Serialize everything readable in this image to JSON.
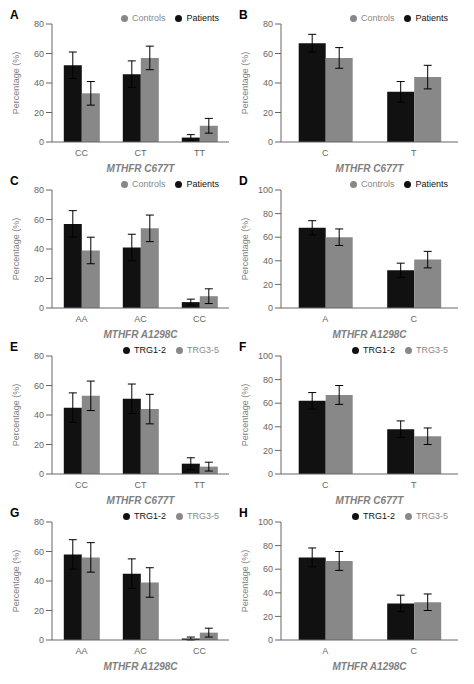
{
  "chart_data": [
    {
      "type": "bar",
      "title": "A",
      "categories": [
        "CC",
        "CT",
        "TT"
      ],
      "x_label": "MTHFR C677T",
      "y_label": "Percentage (%)",
      "series": [
        {
          "name": "Patients",
          "color": "#111111",
          "values": [
            52,
            46,
            3
          ],
          "errors": [
            9,
            9,
            2
          ]
        },
        {
          "name": "Controls",
          "color": "#888888",
          "values": [
            33,
            57,
            11
          ],
          "errors": [
            8,
            8,
            5
          ]
        }
      ],
      "ylim": [
        0,
        80
      ],
      "yticks": [
        0,
        20,
        40,
        60,
        80
      ],
      "grid": false,
      "legend": "upper right"
    },
    {
      "type": "bar",
      "title": "B",
      "categories": [
        "C",
        "T"
      ],
      "x_label": "MTHFR C677T",
      "y_label": "Percentage (%)",
      "series": [
        {
          "name": "Patients",
          "color": "#111111",
          "values": [
            67,
            34
          ],
          "errors": [
            6,
            7
          ]
        },
        {
          "name": "Controls",
          "color": "#888888",
          "values": [
            57,
            44
          ],
          "errors": [
            7,
            8
          ]
        }
      ],
      "ylim": [
        0,
        80
      ],
      "yticks": [
        0,
        20,
        40,
        60,
        80
      ],
      "grid": false,
      "legend": "upper right"
    },
    {
      "type": "bar",
      "title": "C",
      "categories": [
        "AA",
        "AC",
        "CC"
      ],
      "x_label": "MTHFR A1298C",
      "y_label": "Percentage (%)",
      "series": [
        {
          "name": "Patients",
          "color": "#111111",
          "values": [
            57,
            41,
            4
          ],
          "errors": [
            9,
            9,
            2
          ]
        },
        {
          "name": "Controls",
          "color": "#888888",
          "values": [
            39,
            54,
            8
          ],
          "errors": [
            9,
            9,
            5
          ]
        }
      ],
      "ylim": [
        0,
        80
      ],
      "yticks": [
        0,
        20,
        40,
        60,
        80
      ],
      "grid": false,
      "legend": "upper right"
    },
    {
      "type": "bar",
      "title": "D",
      "categories": [
        "A",
        "C"
      ],
      "x_label": "MTHFR A1298C",
      "y_label": "Percentage (%)",
      "series": [
        {
          "name": "Patients",
          "color": "#111111",
          "values": [
            68,
            32
          ],
          "errors": [
            6,
            6
          ]
        },
        {
          "name": "Controls",
          "color": "#888888",
          "values": [
            60,
            41
          ],
          "errors": [
            7,
            7
          ]
        }
      ],
      "ylim": [
        0,
        100
      ],
      "yticks": [
        0,
        20,
        40,
        60,
        80,
        100
      ],
      "grid": false,
      "legend": "upper right"
    },
    {
      "type": "bar",
      "title": "E",
      "categories": [
        "CC",
        "CT",
        "TT"
      ],
      "x_label": "MTHFR C677T",
      "y_label": "Percentage (%)",
      "series": [
        {
          "name": "TRG1-2",
          "color": "#111111",
          "values": [
            45,
            51,
            7
          ],
          "errors": [
            10,
            10,
            4
          ]
        },
        {
          "name": "TRG3-5",
          "color": "#888888",
          "values": [
            53,
            44,
            5
          ],
          "errors": [
            10,
            10,
            3
          ]
        }
      ],
      "ylim": [
        0,
        80
      ],
      "yticks": [
        0,
        20,
        40,
        60,
        80
      ],
      "grid": false,
      "legend": "upper right"
    },
    {
      "type": "bar",
      "title": "F",
      "categories": [
        "C",
        "T"
      ],
      "x_label": "MTHFR C677T",
      "y_label": "Percentage (%)",
      "series": [
        {
          "name": "TRG1-2",
          "color": "#111111",
          "values": [
            62,
            38
          ],
          "errors": [
            7,
            7
          ]
        },
        {
          "name": "TRG3-5",
          "color": "#888888",
          "values": [
            67,
            32
          ],
          "errors": [
            8,
            7
          ]
        }
      ],
      "ylim": [
        0,
        100
      ],
      "yticks": [
        0,
        20,
        40,
        60,
        80,
        100
      ],
      "grid": false,
      "legend": "upper right"
    },
    {
      "type": "bar",
      "title": "G",
      "categories": [
        "AA",
        "AC",
        "CC"
      ],
      "x_label": "MTHFR A1298C",
      "y_label": "Percentage (%)",
      "series": [
        {
          "name": "TRG1-2",
          "color": "#111111",
          "values": [
            58,
            45,
            1
          ],
          "errors": [
            10,
            10,
            1
          ]
        },
        {
          "name": "TRG3-5",
          "color": "#888888",
          "values": [
            56,
            39,
            5
          ],
          "errors": [
            10,
            10,
            3
          ]
        }
      ],
      "ylim": [
        0,
        80
      ],
      "yticks": [
        0,
        20,
        40,
        60,
        80
      ],
      "grid": false,
      "legend": "upper right"
    },
    {
      "type": "bar",
      "title": "H",
      "categories": [
        "A",
        "C"
      ],
      "x_label": "MTHFR A1298C",
      "y_label": "Percentage (%)",
      "series": [
        {
          "name": "TRG1-2",
          "color": "#111111",
          "values": [
            70,
            31
          ],
          "errors": [
            8,
            7
          ]
        },
        {
          "name": "TRG3-5",
          "color": "#888888",
          "values": [
            67,
            32
          ],
          "errors": [
            8,
            7
          ]
        }
      ],
      "ylim": [
        0,
        100
      ],
      "yticks": [
        0,
        20,
        40,
        60,
        80,
        100
      ],
      "grid": false,
      "legend": "upper right"
    }
  ]
}
